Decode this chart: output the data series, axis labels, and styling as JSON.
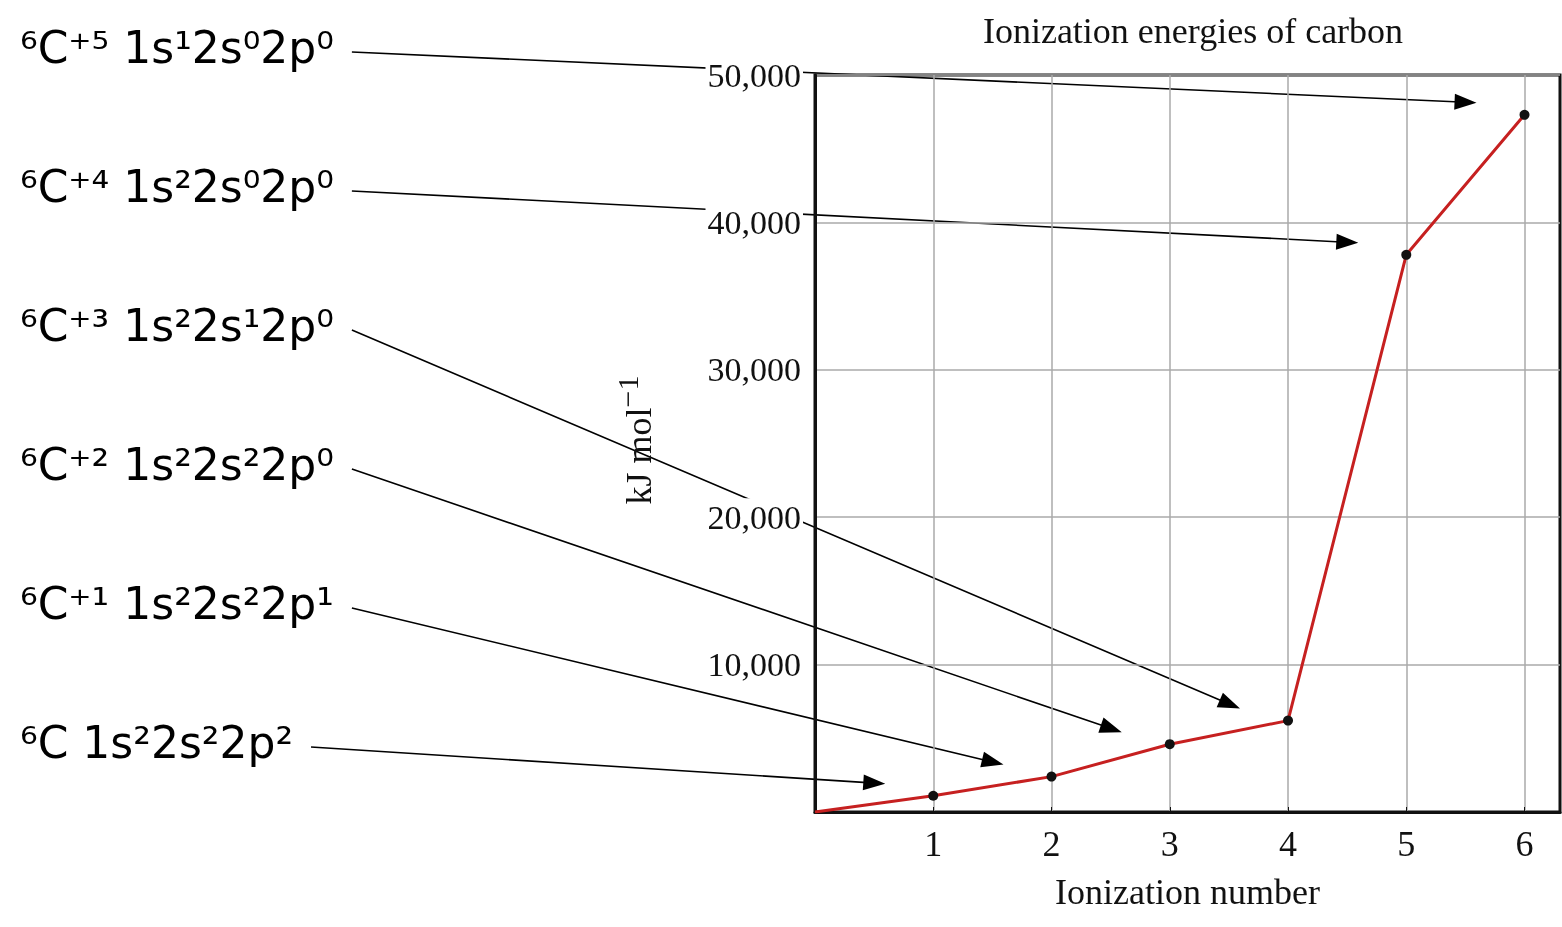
{
  "chart_data": {
    "type": "line",
    "title": "Ionization energies of carbon",
    "xlabel": "Ionization number",
    "ylabel": "kJ mol$^{−1}$",
    "x": [
      0,
      1,
      2,
      3,
      4,
      5,
      6
    ],
    "series": [
      {
        "color": "#c62020",
        "values": [
          0,
          1100,
          2400,
          4600,
          6200,
          37800,
          47300
        ]
      }
    ],
    "marker": "circle",
    "line_style": "solid",
    "grid": true,
    "xlim": [
      0,
      6.3
    ],
    "xticks": [
      1,
      2,
      3,
      4,
      5,
      6
    ],
    "ylim": [
      0,
      50000
    ],
    "yticks": [
      {
        "value": 10000,
        "label": "10,000"
      },
      {
        "value": 20000,
        "label": "20,000"
      },
      {
        "value": 30000,
        "label": "30,000"
      },
      {
        "value": 40000,
        "label": "40,000"
      },
      {
        "value": 50000,
        "label": "50,000"
      }
    ],
    "annotations": [
      "⁶C   1s²2s²2p²",
      "⁶C⁺¹  1s²2s²2p¹",
      "⁶C⁺²  1s²2s²2p⁰",
      "⁶C⁺³  1s²2s¹2p⁰",
      "⁶C⁺⁴  1s²2s⁰2p⁰",
      "⁶C⁺⁵  1s¹2s⁰2p⁰"
    ]
  }
}
